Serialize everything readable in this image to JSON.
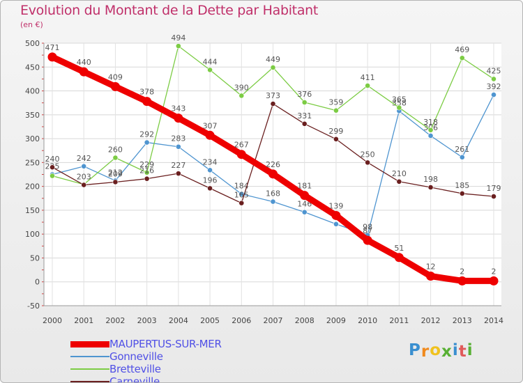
{
  "title": "Evolution du Montant de la Dette par Habitant",
  "subtitle": "(en €)",
  "logo": {
    "letters": [
      "P",
      "r",
      "o",
      "x",
      "i",
      "t",
      "i"
    ],
    "colors": [
      "#3a8fd0",
      "#f08a1e",
      "#f0c21e",
      "#58b034",
      "#3a8fd0",
      "#e05a5a",
      "#58b034"
    ]
  },
  "chart_data": {
    "type": "line",
    "title": "Evolution du Montant de la Dette par Habitant",
    "ylabel": "(en €)",
    "x": [
      "2000",
      "2001",
      "2002",
      "2003",
      "2004",
      "2005",
      "2006",
      "2007",
      "2008",
      "2009",
      "2010",
      "2011",
      "2012",
      "2013",
      "2014"
    ],
    "ylim": [
      -50,
      500
    ],
    "yticks": [
      "-50",
      "0",
      "50",
      "100",
      "150",
      "200",
      "250",
      "300",
      "350",
      "400",
      "450",
      "500"
    ],
    "grid": true,
    "legend_position": "bottom-left",
    "series": [
      {
        "name": "MAUPERTUS-SUR-MER",
        "color": "#ee0000",
        "emphasis": true,
        "values": [
          471,
          440,
          409,
          378,
          343,
          307,
          267,
          226,
          181,
          139,
          87,
          51,
          12,
          2,
          2
        ],
        "labels": [
          "471",
          "440",
          "409",
          "378",
          "343",
          "307",
          "267",
          "226",
          "181",
          "139",
          "87",
          "51",
          "12",
          "2",
          "2"
        ]
      },
      {
        "name": "Gonneville",
        "color": "#4f95d0",
        "values": [
          225,
          242,
          212,
          292,
          283,
          234,
          184,
          168,
          146,
          121,
          98,
          358,
          306,
          261,
          392
        ],
        "labels": [
          "225",
          "242",
          "212",
          "292",
          "283",
          "234",
          "184",
          "168",
          "146",
          "",
          "98",
          "358",
          "306",
          "261",
          "392"
        ]
      },
      {
        "name": "Bretteville",
        "color": "#7ccc44",
        "values": [
          222,
          204,
          260,
          229,
          494,
          444,
          390,
          449,
          376,
          359,
          411,
          365,
          318,
          469,
          425
        ],
        "labels": [
          "",
          "",
          "260",
          "229",
          "494",
          "444",
          "390",
          "449",
          "376",
          "359",
          "411",
          "365",
          "318",
          "469",
          "425"
        ]
      },
      {
        "name": "Carneville",
        "color": "#6a1f1f",
        "values": [
          240,
          203,
          209,
          216,
          227,
          196,
          165,
          373,
          331,
          299,
          250,
          210,
          198,
          185,
          179
        ],
        "labels": [
          "240",
          "203",
          "209",
          "216",
          "227",
          "196",
          "165",
          "373",
          "331",
          "299",
          "250",
          "210",
          "198",
          "185",
          "179"
        ]
      }
    ]
  }
}
